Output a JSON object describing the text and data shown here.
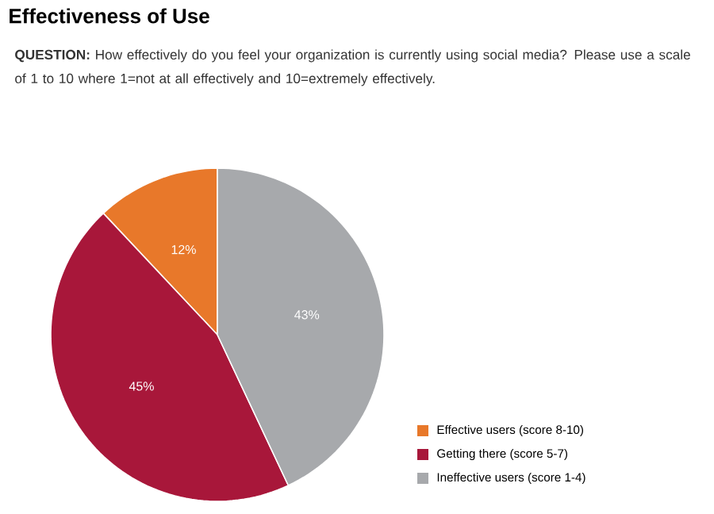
{
  "chart_data": {
    "type": "pie",
    "title": "Effectiveness of Use",
    "subtitle": "**QUESTION:** How effectively do you feel your organization is currently using social media? Please use a scale of 1 to 10 where 1=not at all effectively and 10=extremely effectively.",
    "categories": [
      "Effective users (score 8-10)",
      "Getting there (score 5-7)",
      "Ineffective users (score 1-4)"
    ],
    "values": [
      12,
      45,
      43
    ],
    "colors": [
      "#e8782a",
      "#a8173a",
      "#a7a9ac"
    ],
    "value_labels": [
      "12%",
      "45%",
      "43%"
    ],
    "legend": "bottom right"
  }
}
